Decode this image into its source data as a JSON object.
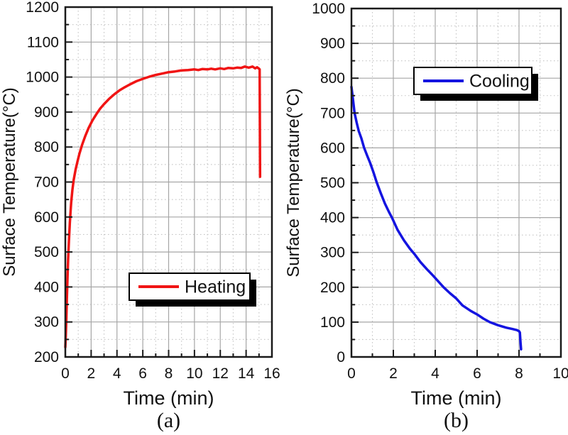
{
  "chart_data": [
    {
      "id": "heating",
      "type": "line",
      "panel_caption": "(a)",
      "xlabel": "Time (min)",
      "ylabel": "Surface Temperature(°C)",
      "xlim": [
        0,
        16
      ],
      "ylim": [
        200,
        1200
      ],
      "x_ticks": [
        0,
        2,
        4,
        6,
        8,
        10,
        12,
        14,
        16
      ],
      "y_ticks": [
        200,
        300,
        400,
        500,
        600,
        700,
        800,
        900,
        1000,
        1100,
        1200
      ],
      "x_major_step": 2,
      "x_minor_step": 1,
      "y_major_step": 100,
      "y_minor_step": 50,
      "grid": {
        "major_on": true,
        "minor_on": true,
        "major_color": "#a6a6a6",
        "minor_color": "#c3c3c3"
      },
      "legend": {
        "label": "Heating",
        "position": "inside-center-right"
      },
      "line_color": "#f01414",
      "series": [
        {
          "name": "Heating",
          "points": [
            [
              0,
              228
            ],
            [
              0.04,
              262
            ],
            [
              0.08,
              312
            ],
            [
              0.12,
              368
            ],
            [
              0.17,
              428
            ],
            [
              0.22,
              482
            ],
            [
              0.28,
              532
            ],
            [
              0.35,
              585
            ],
            [
              0.45,
              640
            ],
            [
              0.55,
              678
            ],
            [
              0.65,
              706
            ],
            [
              0.8,
              736
            ],
            [
              0.95,
              760
            ],
            [
              1.1,
              782
            ],
            [
              1.3,
              806
            ],
            [
              1.55,
              832
            ],
            [
              1.8,
              854
            ],
            [
              2.1,
              876
            ],
            [
              2.4,
              894
            ],
            [
              2.7,
              910
            ],
            [
              3.0,
              923
            ],
            [
              3.4,
              938
            ],
            [
              3.8,
              951
            ],
            [
              4.2,
              962
            ],
            [
              4.6,
              971
            ],
            [
              5.0,
              979
            ],
            [
              5.5,
              988
            ],
            [
              6.0,
              995
            ],
            [
              6.5,
              1001
            ],
            [
              7.0,
              1006
            ],
            [
              7.5,
              1010
            ],
            [
              8.0,
              1014
            ],
            [
              8.5,
              1016
            ],
            [
              9.0,
              1019
            ],
            [
              9.5,
              1020
            ],
            [
              10.0,
              1022
            ],
            [
              10.3,
              1020
            ],
            [
              10.6,
              1023
            ],
            [
              11.0,
              1022
            ],
            [
              11.3,
              1024
            ],
            [
              11.6,
              1022
            ],
            [
              12.0,
              1025
            ],
            [
              12.3,
              1023
            ],
            [
              12.6,
              1026
            ],
            [
              13.0,
              1025
            ],
            [
              13.3,
              1027
            ],
            [
              13.6,
              1026
            ],
            [
              13.9,
              1030
            ],
            [
              14.2,
              1027
            ],
            [
              14.5,
              1030
            ],
            [
              14.7,
              1025
            ],
            [
              14.85,
              1028
            ],
            [
              15.0,
              1024
            ],
            [
              15.05,
              1022
            ],
            [
              15.08,
              715
            ]
          ]
        }
      ]
    },
    {
      "id": "cooling",
      "type": "line",
      "panel_caption": "(b)",
      "xlabel": "Time (min)",
      "ylabel": "Surface Temperature(°C)",
      "xlim": [
        0,
        10
      ],
      "ylim": [
        0,
        1000
      ],
      "x_ticks": [
        0,
        2,
        4,
        6,
        8,
        10
      ],
      "y_ticks": [
        0,
        100,
        200,
        300,
        400,
        500,
        600,
        700,
        800,
        900,
        1000
      ],
      "x_major_step": 2,
      "x_minor_step": 1,
      "y_major_step": 100,
      "y_minor_step": 50,
      "grid": {
        "major_on": true,
        "minor_on": true,
        "major_color": "#a6a6a6",
        "minor_color": "#c3c3c3"
      },
      "legend": {
        "label": "Cooling",
        "position": "inside-top-center"
      },
      "line_color": "#1414e0",
      "series": [
        {
          "name": "Cooling",
          "points": [
            [
              0,
              775
            ],
            [
              0.07,
              740
            ],
            [
              0.15,
              700
            ],
            [
              0.25,
              672
            ],
            [
              0.35,
              648
            ],
            [
              0.47,
              628
            ],
            [
              0.6,
              601
            ],
            [
              0.75,
              578
            ],
            [
              0.9,
              556
            ],
            [
              1.05,
              530
            ],
            [
              1.2,
              502
            ],
            [
              1.4,
              470
            ],
            [
              1.6,
              440
            ],
            [
              1.8,
              415
            ],
            [
              1.95,
              398
            ],
            [
              2.2,
              365
            ],
            [
              2.5,
              335
            ],
            [
              2.8,
              310
            ],
            [
              3.0,
              296
            ],
            [
              3.3,
              272
            ],
            [
              3.6,
              252
            ],
            [
              3.9,
              233
            ],
            [
              4.1,
              220
            ],
            [
              4.4,
              200
            ],
            [
              4.7,
              183
            ],
            [
              5.0,
              168
            ],
            [
              5.3,
              148
            ],
            [
              5.7,
              132
            ],
            [
              6.0,
              122
            ],
            [
              6.3,
              110
            ],
            [
              6.6,
              100
            ],
            [
              7.0,
              91
            ],
            [
              7.4,
              84
            ],
            [
              7.7,
              80
            ],
            [
              7.9,
              77
            ],
            [
              8.0,
              74
            ],
            [
              8.04,
              70
            ],
            [
              8.07,
              42
            ],
            [
              8.1,
              22
            ]
          ]
        }
      ]
    }
  ],
  "style": {
    "axis_color": "#1a1a1a",
    "background": "#ffffff",
    "legend_shadow_color": "#000000"
  }
}
